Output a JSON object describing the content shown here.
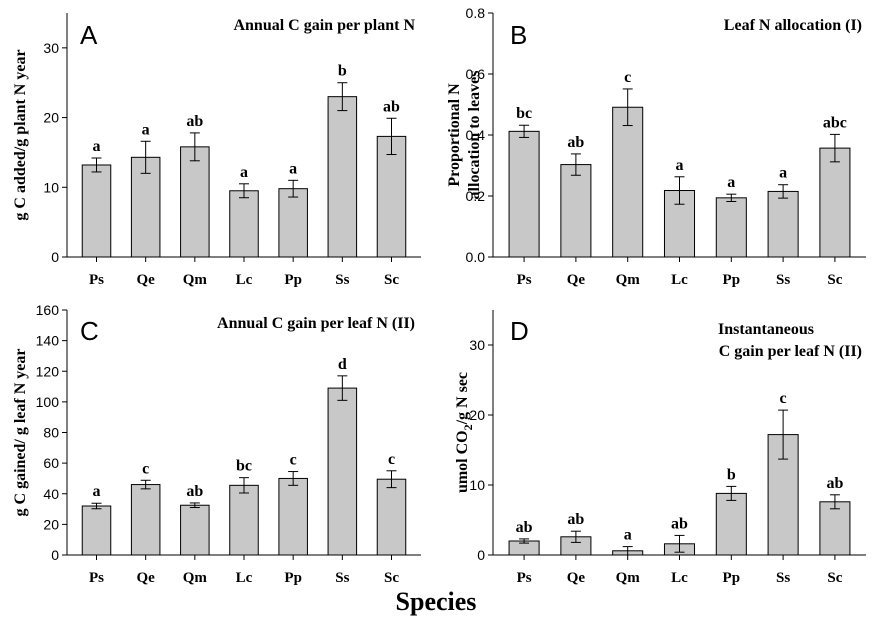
{
  "figure": {
    "xlabel": "Species"
  },
  "chart_data": [
    {
      "id": "A",
      "type": "bar",
      "title": "Annual C gain per plant N",
      "ylabel": "g C added/g plant N year",
      "categories": [
        "Ps",
        "Qe",
        "Qm",
        "Lc",
        "Pp",
        "Ss",
        "Sc"
      ],
      "values": [
        13.2,
        14.3,
        15.8,
        9.5,
        9.8,
        23.0,
        17.3
      ],
      "errors": [
        1.0,
        2.3,
        2.0,
        1.0,
        1.2,
        2.0,
        2.6
      ],
      "significance": [
        "a",
        "a",
        "ab",
        "a",
        "a",
        "b",
        "ab"
      ],
      "ylim": [
        0,
        35
      ],
      "yticks": [
        0,
        10,
        20,
        30
      ],
      "ytick_labels": [
        "0",
        "10",
        "20",
        "30"
      ]
    },
    {
      "id": "B",
      "type": "bar",
      "title": "Leaf N allocation (I)",
      "ylabel": "Proportional N allocation to leaves",
      "categories": [
        "Ps",
        "Qe",
        "Qm",
        "Lc",
        "Pp",
        "Ss",
        "Sc"
      ],
      "values": [
        0.412,
        0.303,
        0.491,
        0.218,
        0.194,
        0.215,
        0.357
      ],
      "errors": [
        0.02,
        0.035,
        0.06,
        0.045,
        0.012,
        0.022,
        0.045
      ],
      "significance": [
        "bc",
        "ab",
        "c",
        "a",
        "a",
        "a",
        "abc"
      ],
      "ylim": [
        0,
        0.8
      ],
      "yticks": [
        0,
        0.2,
        0.4,
        0.6,
        0.8
      ],
      "ytick_labels": [
        "0.0",
        "0.2",
        "0.4",
        "0.6",
        "0.8"
      ]
    },
    {
      "id": "C",
      "type": "bar",
      "title": "Annual C gain per leaf N (II)",
      "ylabel": "g C gained/ g leaf N year",
      "categories": [
        "Ps",
        "Qe",
        "Qm",
        "Lc",
        "Pp",
        "Ss",
        "Sc"
      ],
      "values": [
        32,
        46,
        32.5,
        45.5,
        50,
        109,
        49.5
      ],
      "errors": [
        1.8,
        2.8,
        1.5,
        5.0,
        4.5,
        8.0,
        5.5
      ],
      "significance": [
        "a",
        "c",
        "ab",
        "bc",
        "c",
        "d",
        "c"
      ],
      "ylim": [
        0,
        160
      ],
      "yticks": [
        0,
        20,
        40,
        60,
        80,
        100,
        120,
        140,
        160
      ],
      "ytick_labels": [
        "0",
        "20",
        "40",
        "60",
        "80",
        "100",
        "120",
        "140",
        "160"
      ]
    },
    {
      "id": "D",
      "type": "bar",
      "title": "Instantaneous C gain per leaf N (II)",
      "title_lines": [
        "Instantaneous",
        "C gain per leaf N (II)"
      ],
      "ylabel": "umol CO2/g N sec",
      "ylabel_parts": [
        "umol CO",
        "2",
        "/g N sec"
      ],
      "categories": [
        "Ps",
        "Qe",
        "Qm",
        "Lc",
        "Pp",
        "Ss",
        "Sc"
      ],
      "values": [
        2.0,
        2.6,
        0.6,
        1.6,
        8.8,
        17.2,
        7.6
      ],
      "errors": [
        0.3,
        0.8,
        0.6,
        1.2,
        1.0,
        3.5,
        1.0
      ],
      "significance": [
        "ab",
        "ab",
        "a",
        "ab",
        "b",
        "c",
        "ab"
      ],
      "ylim": [
        0,
        35
      ],
      "yticks": [
        0,
        10,
        20,
        30
      ],
      "ytick_labels": [
        "0",
        "10",
        "20",
        "30"
      ]
    }
  ]
}
